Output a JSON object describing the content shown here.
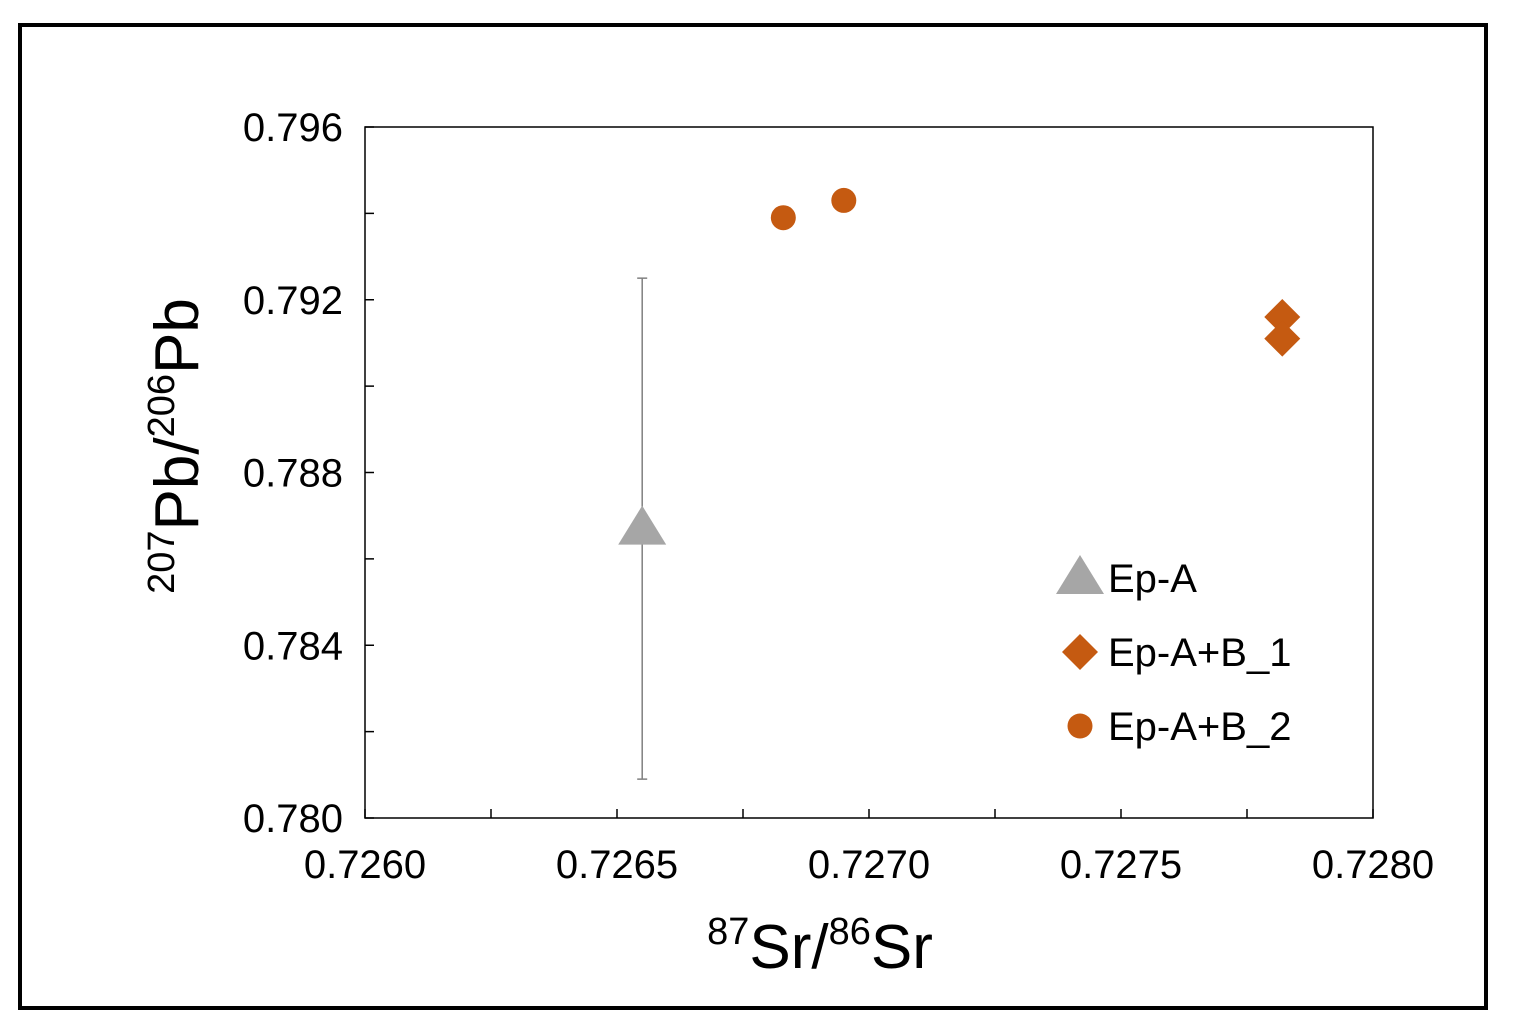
{
  "chart_data": {
    "type": "scatter",
    "xlabel": {
      "sup1": "87",
      "main1": "Sr/",
      "sup2": "86",
      "main2": "Sr"
    },
    "ylabel": {
      "sup1": "207",
      "main1": "Pb/",
      "sup2": "206",
      "main2": "Pb"
    },
    "xlim": [
      0.726,
      0.728
    ],
    "ylim": [
      0.78,
      0.796
    ],
    "xticks": [
      "0.7260",
      "0.7265",
      "0.7270",
      "0.7275",
      "0.7280"
    ],
    "yticks": [
      "0.780",
      "0.784",
      "0.788",
      "0.792",
      "0.796"
    ],
    "x_minor_step": 0.00025,
    "y_minor_step": 0.002,
    "grid": false,
    "legend_position": "bottom-right",
    "series": [
      {
        "name": "Ep-A",
        "marker": "triangle",
        "color": "#A6A6A6",
        "points": [
          {
            "x": 0.72655,
            "y": 0.7867,
            "yerr_low": 0.7809,
            "yerr_high": 0.7925
          }
        ]
      },
      {
        "name": "Ep-A+B_1",
        "marker": "diamond",
        "color": "#C55A11",
        "points": [
          {
            "x": 0.72782,
            "y": 0.7916
          },
          {
            "x": 0.72782,
            "y": 0.7911
          }
        ]
      },
      {
        "name": "Ep-A+B_2",
        "marker": "circle",
        "color": "#C55A11",
        "points": [
          {
            "x": 0.72683,
            "y": 0.7939
          },
          {
            "x": 0.72695,
            "y": 0.7943
          }
        ]
      }
    ]
  }
}
